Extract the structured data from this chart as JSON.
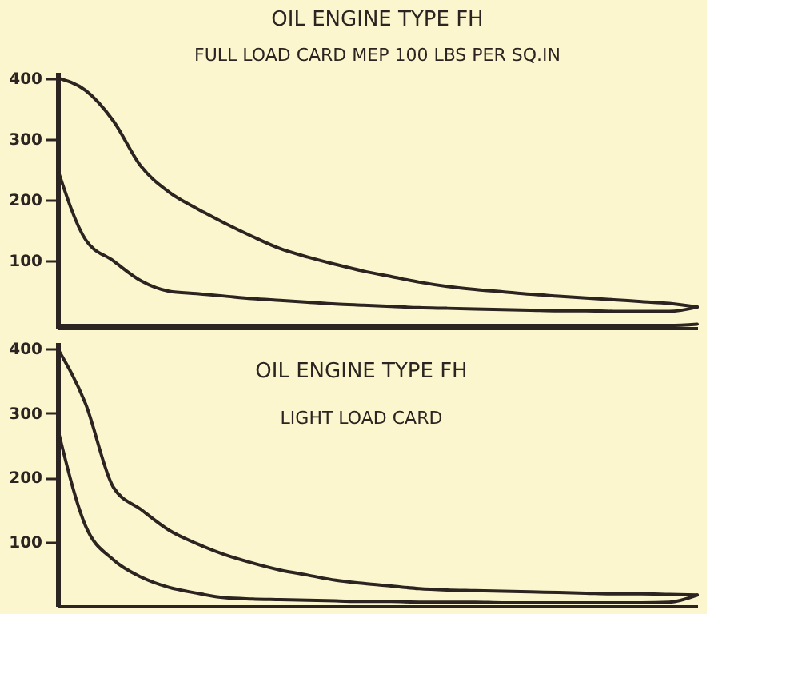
{
  "chart_data": [
    {
      "type": "line",
      "title": "OIL ENGINE TYPE FH",
      "subtitle": "FULL LOAD CARD MEP 100 LBS PER SQ.IN",
      "categories": [
        null,
        null,
        null,
        null,
        null,
        null,
        null,
        null,
        null,
        null,
        null,
        null,
        null,
        null,
        null,
        null,
        null,
        null,
        null,
        null,
        null,
        null,
        null,
        null
      ],
      "series": [
        {
          "color": "#2b2420",
          "values": [
            400,
            380,
            330,
            255,
            213,
            186,
            162,
            140,
            120,
            106,
            94,
            83,
            74,
            65,
            58,
            53,
            49,
            45,
            42,
            39,
            36,
            33,
            30,
            24
          ]
        },
        {
          "color": "#2b2420",
          "values": [
            250,
            135,
            100,
            67,
            50,
            46,
            42,
            38,
            35,
            32,
            29,
            27,
            25,
            23,
            22,
            21,
            20,
            19,
            18,
            18,
            17,
            17,
            17,
            24
          ]
        },
        {
          "color": "#2b2420",
          "values": [
            -6,
            -6,
            -6,
            -6,
            -6,
            -6,
            -6,
            -6,
            -6,
            -6,
            -6,
            -6,
            -6,
            -6,
            -6,
            -6,
            -6,
            -6,
            -6,
            -6,
            -6,
            -6,
            -6,
            -4
          ]
        }
      ],
      "ylim": [
        -10,
        410
      ],
      "yticks": [
        100,
        200,
        300,
        400
      ],
      "tick_labels": "y",
      "grid": false,
      "legend": false,
      "marker": "none",
      "line_style": "solid"
    },
    {
      "type": "line",
      "title": "OIL ENGINE TYPE FH",
      "subtitle": "LIGHT LOAD CARD",
      "categories": [
        null,
        null,
        null,
        null,
        null,
        null,
        null,
        null,
        null,
        null,
        null,
        null,
        null,
        null,
        null,
        null,
        null,
        null,
        null,
        null,
        null,
        null,
        null,
        null
      ],
      "series": [
        {
          "color": "#2b2420",
          "values": [
            400,
            315,
            185,
            150,
            118,
            97,
            80,
            67,
            56,
            48,
            40,
            35,
            31,
            27,
            25,
            24,
            23,
            22,
            21,
            20,
            19,
            19,
            18,
            17
          ]
        },
        {
          "color": "#2b2420",
          "values": [
            276,
            125,
            72,
            45,
            29,
            20,
            13,
            11,
            10,
            9,
            8,
            7,
            7,
            6,
            6,
            6,
            5,
            5,
            5,
            5,
            5,
            5,
            6,
            17
          ]
        }
      ],
      "ylim": [
        0,
        410
      ],
      "yticks": [
        100,
        200,
        300,
        400
      ],
      "tick_labels": "y",
      "grid": false,
      "legend": false,
      "marker": "none",
      "line_style": "solid"
    }
  ]
}
